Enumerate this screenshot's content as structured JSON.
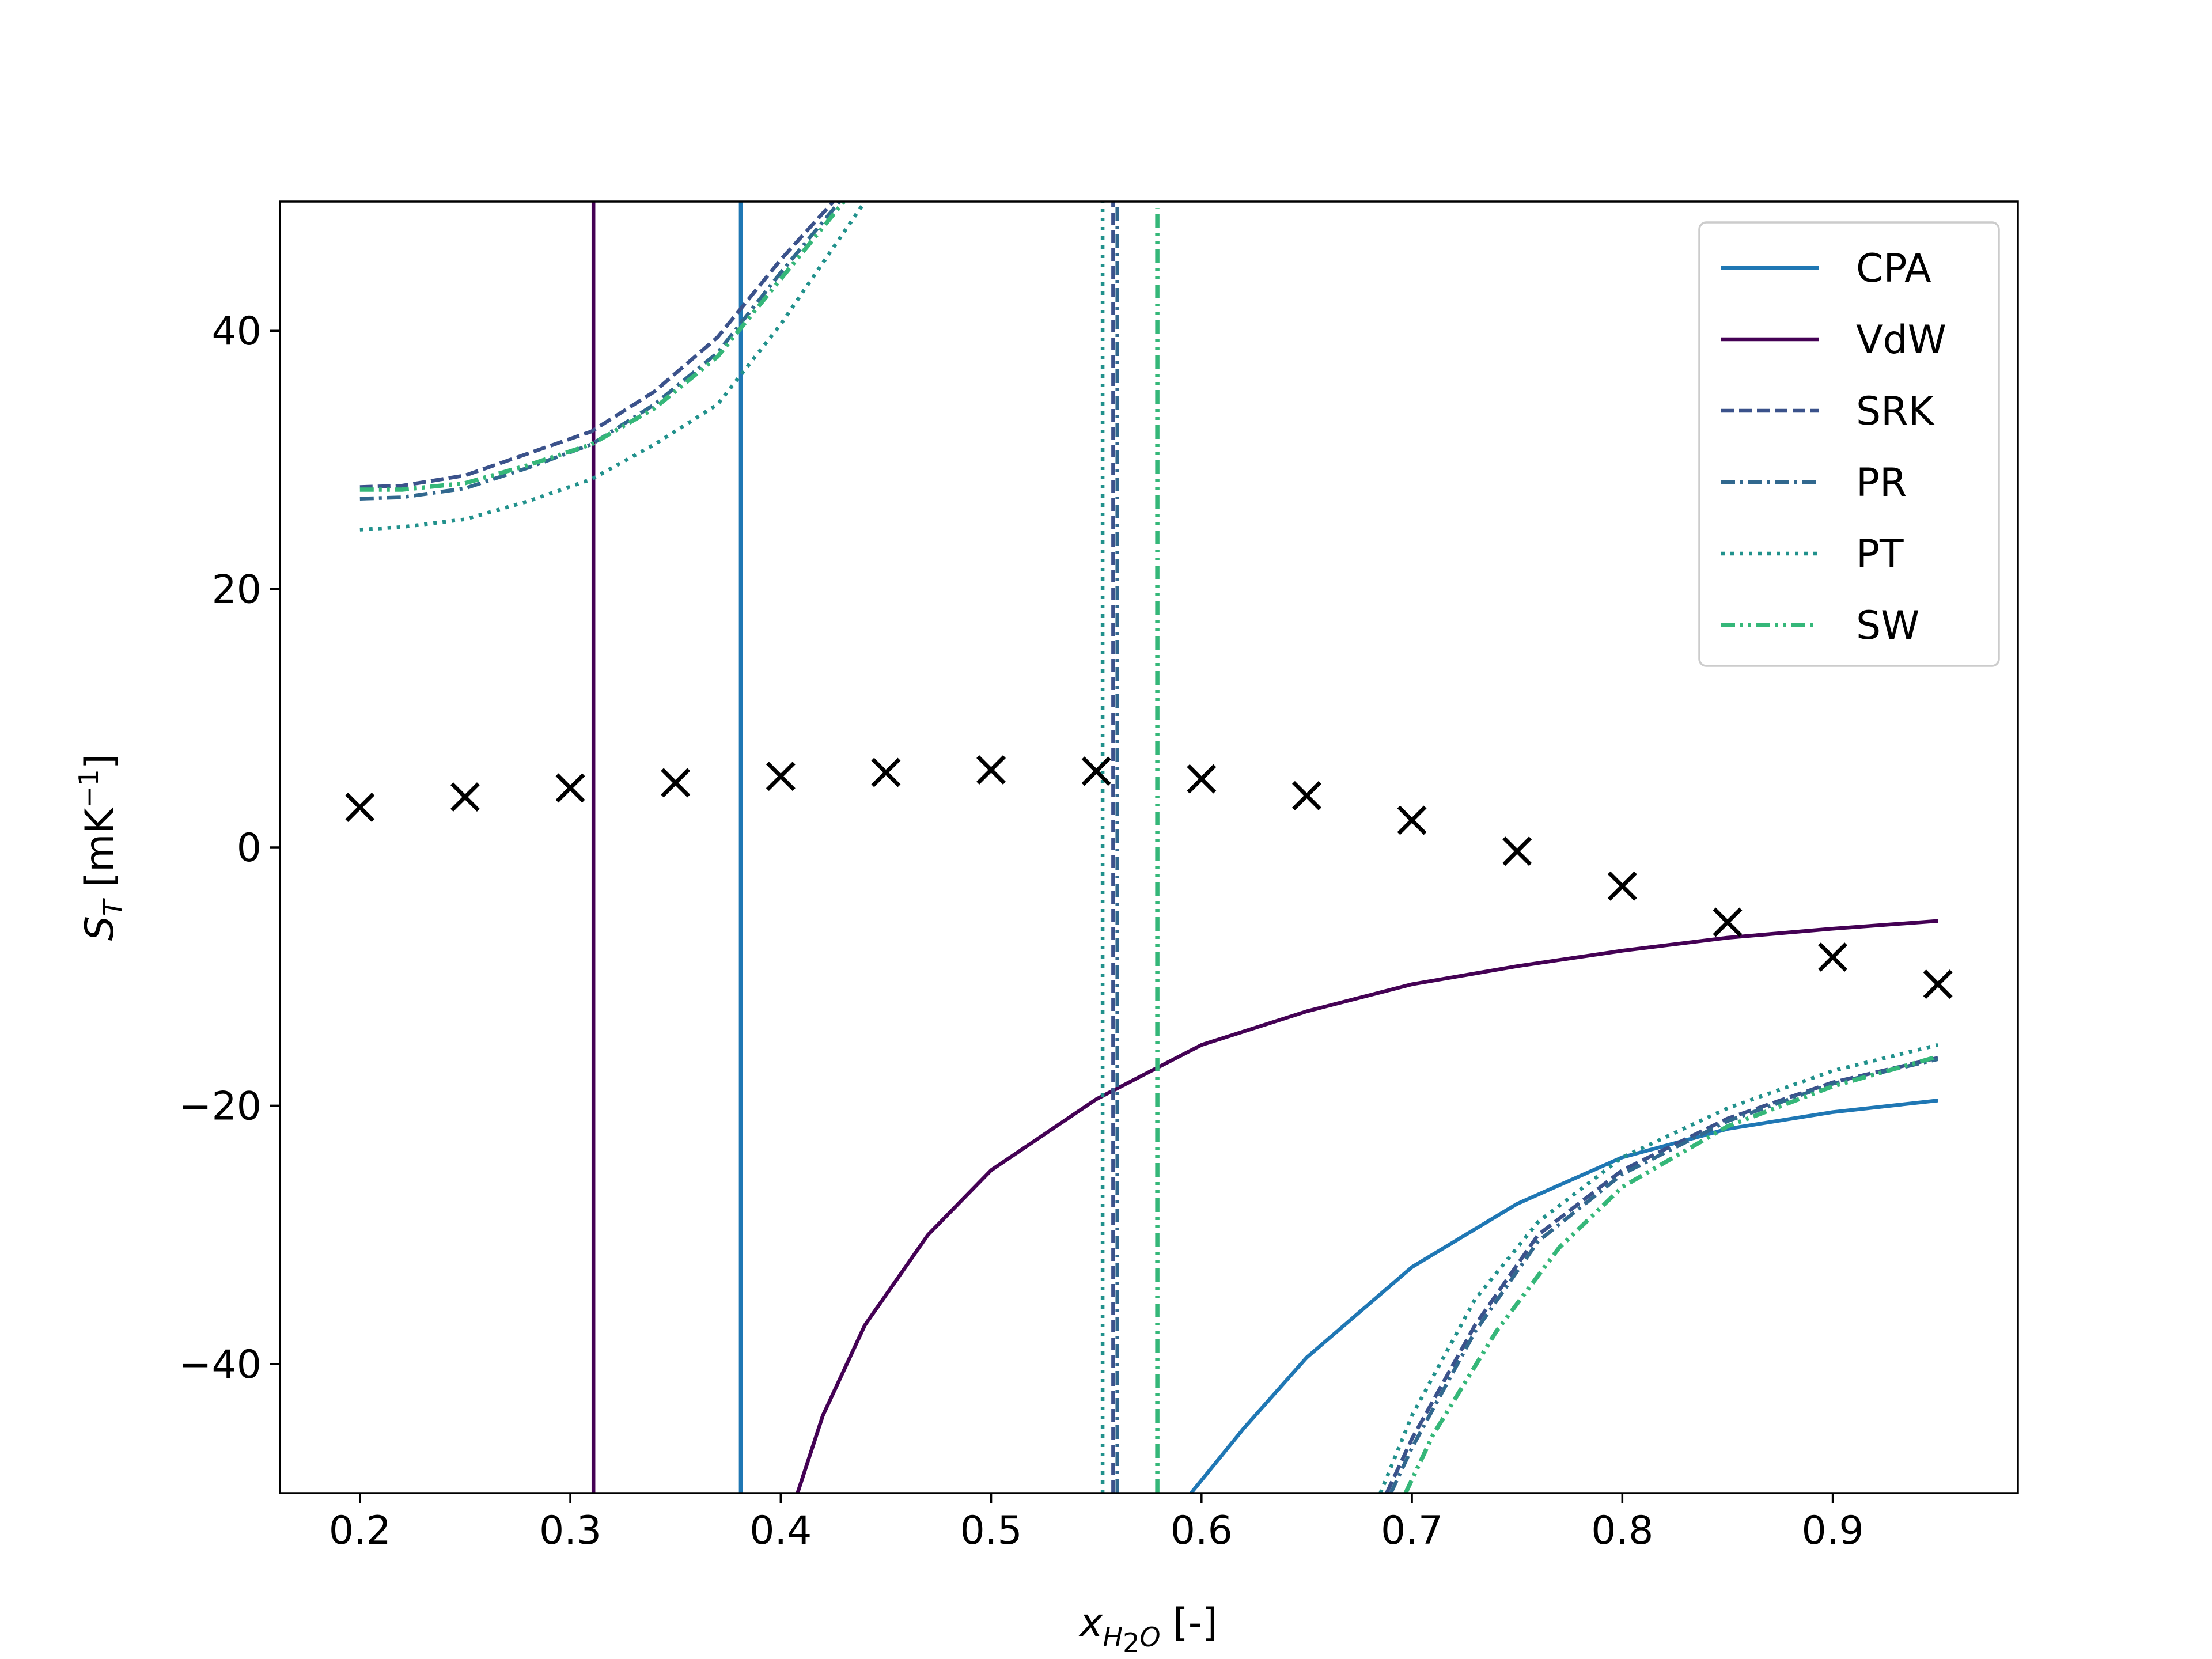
{
  "chart_data": {
    "type": "line",
    "title": "",
    "xlabel": {
      "main": "x",
      "sub": "H",
      "sub2": "2",
      "sub3": "O",
      "suffix": " [-]"
    },
    "ylabel": {
      "main": "S",
      "sub": "T",
      "pre_unit": " [mK",
      "sup": "−1",
      "post_unit": "]"
    },
    "xlim": [
      0.162,
      0.988
    ],
    "ylim": [
      -50,
      50
    ],
    "xticks": [
      0.2,
      0.3,
      0.4,
      0.5,
      0.6,
      0.7,
      0.8,
      0.9
    ],
    "xtick_labels": [
      "0.2",
      "0.3",
      "0.4",
      "0.5",
      "0.6",
      "0.7",
      "0.8",
      "0.9"
    ],
    "yticks": [
      -40,
      -20,
      0,
      20,
      40
    ],
    "ytick_labels": [
      "−40",
      "−20",
      "0",
      "20",
      "40"
    ],
    "grid": false,
    "legend_position": "top-right",
    "series": [
      {
        "name": "CPA",
        "color": "#1f77b4",
        "style": "solid",
        "segments": [
          [
            [
              0.381,
              -50
            ],
            [
              0.381,
              50
            ]
          ],
          [
            [
              0.595,
              -50
            ],
            [
              0.62,
              -45
            ],
            [
              0.65,
              -39.5
            ],
            [
              0.7,
              -32.5
            ],
            [
              0.75,
              -27.6
            ],
            [
              0.8,
              -24.0
            ],
            [
              0.85,
              -21.8
            ],
            [
              0.9,
              -20.5
            ],
            [
              0.95,
              -19.6
            ]
          ]
        ]
      },
      {
        "name": "VdW",
        "color": "#440154",
        "style": "solid",
        "segments": [
          [
            [
              0.311,
              -50
            ],
            [
              0.311,
              50
            ]
          ],
          [
            [
              0.408,
              -50
            ],
            [
              0.42,
              -44
            ],
            [
              0.44,
              -37
            ],
            [
              0.47,
              -30
            ],
            [
              0.5,
              -25
            ],
            [
              0.55,
              -19.5
            ],
            [
              0.6,
              -15.3
            ],
            [
              0.65,
              -12.7
            ],
            [
              0.7,
              -10.6
            ],
            [
              0.75,
              -9.2
            ],
            [
              0.8,
              -8.0
            ],
            [
              0.85,
              -7.0
            ],
            [
              0.9,
              -6.3
            ],
            [
              0.95,
              -5.7
            ]
          ]
        ]
      },
      {
        "name": "SRK",
        "color": "#3b528b",
        "style": "dashed",
        "segments": [
          [
            [
              0.2,
              27.9
            ],
            [
              0.22,
              28.0
            ],
            [
              0.25,
              28.8
            ],
            [
              0.28,
              30.5
            ],
            [
              0.31,
              32.2
            ],
            [
              0.34,
              35.3
            ],
            [
              0.37,
              39.5
            ],
            [
              0.4,
              45.5
            ],
            [
              0.425,
              50
            ]
          ],
          [
            [
              0.558,
              -50
            ],
            [
              0.558,
              50
            ]
          ],
          [
            [
              0.688,
              -50
            ],
            [
              0.7,
              -45.8
            ],
            [
              0.73,
              -37.0
            ],
            [
              0.76,
              -30.0
            ],
            [
              0.8,
              -25.0
            ],
            [
              0.85,
              -21.0
            ],
            [
              0.9,
              -18.2
            ],
            [
              0.95,
              -16.3
            ]
          ]
        ]
      },
      {
        "name": "PR",
        "color": "#31688e",
        "style": "dashdot",
        "segments": [
          [
            [
              0.2,
              27.0
            ],
            [
              0.22,
              27.1
            ],
            [
              0.25,
              27.8
            ],
            [
              0.28,
              29.4
            ],
            [
              0.31,
              31.2
            ],
            [
              0.34,
              34.3
            ],
            [
              0.37,
              38.3
            ],
            [
              0.4,
              44.5
            ],
            [
              0.428,
              50
            ]
          ],
          [
            [
              0.56,
              -50
            ],
            [
              0.56,
              50
            ]
          ],
          [
            [
              0.69,
              -50
            ],
            [
              0.7,
              -46.5
            ],
            [
              0.73,
              -37.5
            ],
            [
              0.76,
              -30.5
            ],
            [
              0.8,
              -25.3
            ],
            [
              0.85,
              -21.2
            ],
            [
              0.9,
              -18.3
            ],
            [
              0.95,
              -16.4
            ]
          ]
        ]
      },
      {
        "name": "PT",
        "color": "#21918c",
        "style": "dotted",
        "segments": [
          [
            [
              0.2,
              24.6
            ],
            [
              0.22,
              24.8
            ],
            [
              0.25,
              25.4
            ],
            [
              0.28,
              26.8
            ],
            [
              0.31,
              28.5
            ],
            [
              0.34,
              31.2
            ],
            [
              0.37,
              34.3
            ],
            [
              0.4,
              40.5
            ],
            [
              0.44,
              50
            ]
          ],
          [
            [
              0.553,
              -50
            ],
            [
              0.553,
              50
            ]
          ],
          [
            [
              0.685,
              -50
            ],
            [
              0.7,
              -44.0
            ],
            [
              0.73,
              -35.0
            ],
            [
              0.76,
              -29.0
            ],
            [
              0.8,
              -24.0
            ],
            [
              0.85,
              -20.2
            ],
            [
              0.9,
              -17.3
            ],
            [
              0.95,
              -15.3
            ]
          ]
        ]
      },
      {
        "name": "SW",
        "color": "#35b779",
        "style": "dashdotdot",
        "segments": [
          [
            [
              0.2,
              27.7
            ],
            [
              0.22,
              27.7
            ],
            [
              0.25,
              28.2
            ],
            [
              0.28,
              29.6
            ],
            [
              0.31,
              31.2
            ],
            [
              0.34,
              34.0
            ],
            [
              0.37,
              38.0
            ],
            [
              0.4,
              44.0
            ],
            [
              0.43,
              50
            ]
          ],
          [
            [
              0.579,
              -50
            ],
            [
              0.579,
              49.5
            ]
          ],
          [
            [
              0.697,
              -50
            ],
            [
              0.71,
              -45.5
            ],
            [
              0.74,
              -37.5
            ],
            [
              0.77,
              -31.0
            ],
            [
              0.8,
              -26.3
            ],
            [
              0.85,
              -21.6
            ],
            [
              0.9,
              -18.5
            ],
            [
              0.95,
              -16.2
            ]
          ]
        ]
      }
    ],
    "experimental": {
      "marker": "x",
      "color": "#000000",
      "x": [
        0.2,
        0.25,
        0.3,
        0.35,
        0.4,
        0.45,
        0.5,
        0.55,
        0.6,
        0.65,
        0.7,
        0.75,
        0.8,
        0.85,
        0.9,
        0.95
      ],
      "y": [
        3.1,
        3.9,
        4.6,
        5.0,
        5.5,
        5.8,
        6.0,
        5.9,
        5.3,
        4.0,
        2.1,
        -0.3,
        -3.0,
        -5.8,
        -8.5,
        -10.6
      ]
    }
  }
}
